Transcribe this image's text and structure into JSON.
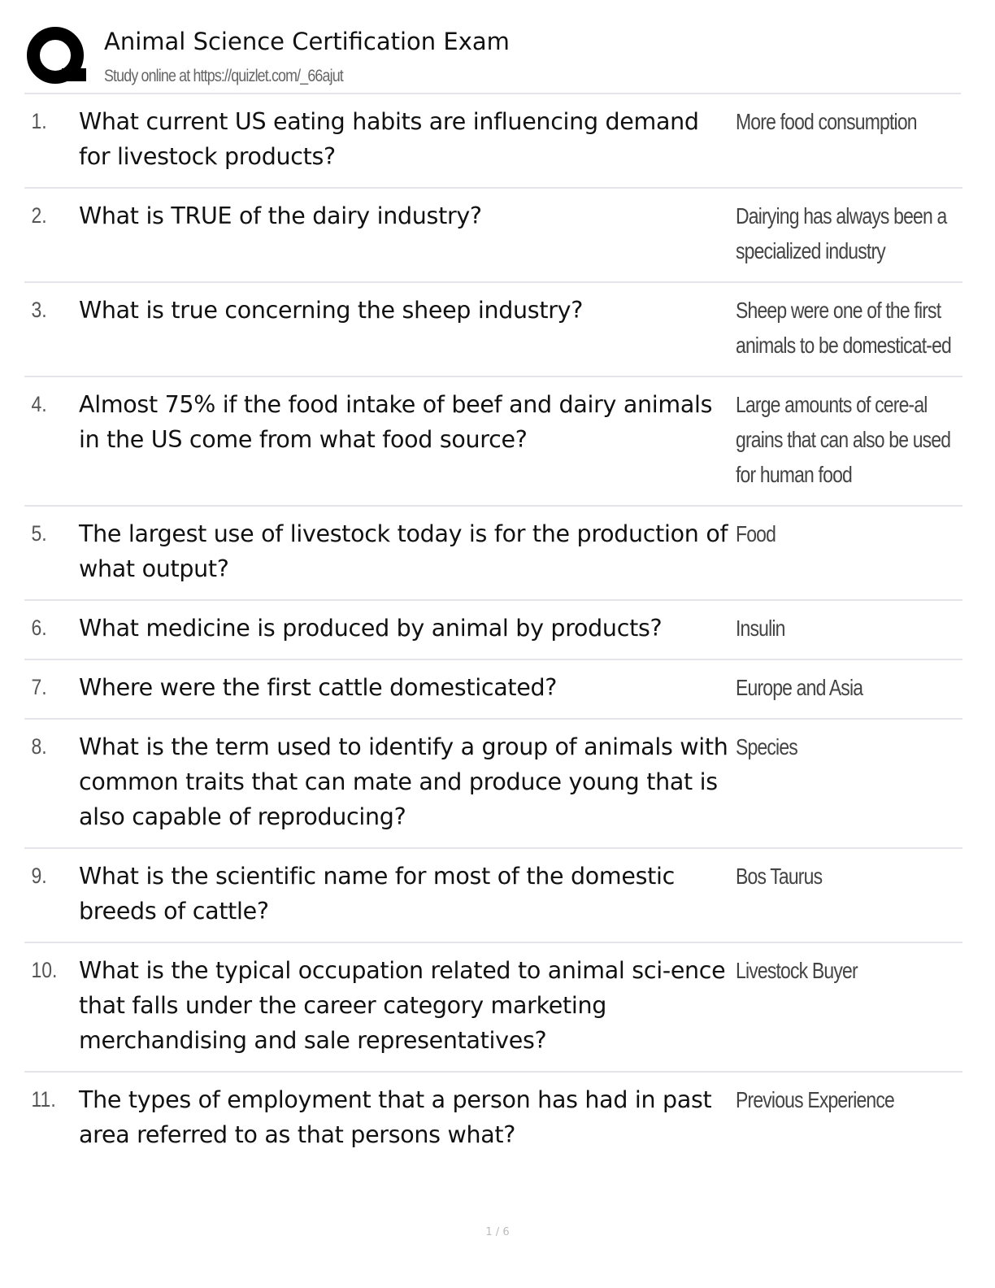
{
  "header": {
    "title": "Animal Science Certification Exam",
    "subtitle": "Study online at https://quizlet.com/_66ajut",
    "logo_icon": "quizlet-q-logo"
  },
  "items": [
    {
      "num": "1.",
      "question": "What current US eating habits are influencing demand for livestock products?",
      "answer": "More food consumption"
    },
    {
      "num": "2.",
      "question": "What is TRUE of the dairy industry?",
      "answer": "Dairying has always been a specialized industry"
    },
    {
      "num": "3.",
      "question": "What is true concerning the sheep industry?",
      "answer": "Sheep were one of the first animals to be domesticat-ed"
    },
    {
      "num": "4.",
      "question": "Almost 75% if the food intake of beef and dairy animals in the US come from what food source?",
      "answer": "Large amounts of cere-al grains that can also be used for human food"
    },
    {
      "num": "5.",
      "question": "The largest use of livestock today is for the production of what output?",
      "answer": "Food"
    },
    {
      "num": "6.",
      "question": "What medicine is produced by animal by products?",
      "answer": "Insulin"
    },
    {
      "num": "7.",
      "question": "Where were the first cattle domesticated?",
      "answer": "Europe and Asia"
    },
    {
      "num": "8.",
      "question": "What is the term used to identify a group of animals with common traits that can mate and produce young that is also capable of reproducing?",
      "answer": "Species"
    },
    {
      "num": "9.",
      "question": "What is the scientific name for most of the domestic breeds of cattle?",
      "answer": "Bos Taurus"
    },
    {
      "num": "10.",
      "question": "What is the typical occupation related to animal sci-ence that falls under the career category marketing merchandising and sale representatives?",
      "answer": "Livestock Buyer"
    },
    {
      "num": "11.",
      "question": "The types of employment that a person has had in past area referred to as that persons what?",
      "answer": "Previous Experience"
    }
  ],
  "footer": {
    "page": "1 / 6"
  }
}
